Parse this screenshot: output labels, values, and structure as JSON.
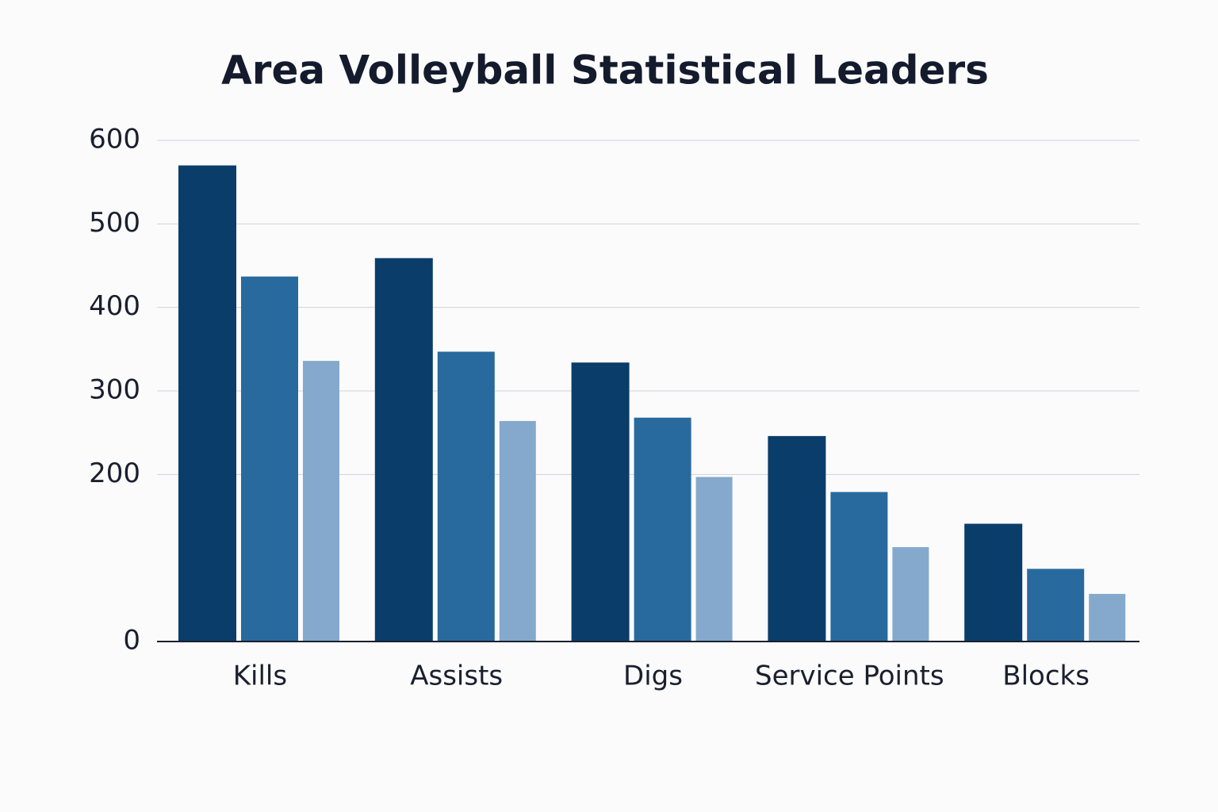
{
  "chart_data": {
    "type": "bar",
    "title": "Area Volleyball Statistical Leaders",
    "categories": [
      "Kills",
      "Assists",
      "Digs",
      "Service Points",
      "Blocks"
    ],
    "series": [
      {
        "color": "#0b3d6b",
        "values": [
          570,
          459,
          334,
          246,
          141
        ]
      },
      {
        "color": "#286a9e",
        "values": [
          437,
          347,
          268,
          179,
          87
        ]
      },
      {
        "color": "#84a9cc",
        "values": [
          336,
          264,
          197,
          113,
          57
        ]
      }
    ],
    "ylim": [
      0,
      600
    ],
    "yticks": [
      0,
      200,
      300,
      400,
      500,
      600
    ],
    "grid": true
  }
}
